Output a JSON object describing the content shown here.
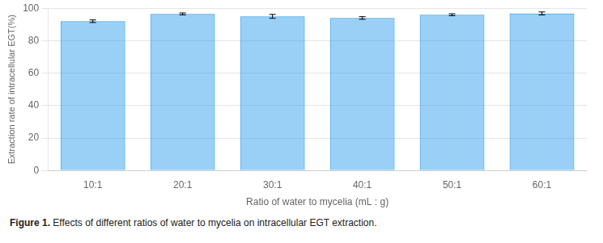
{
  "chart_data": {
    "type": "bar",
    "categories": [
      "10:1",
      "20:1",
      "30:1",
      "40:1",
      "50:1",
      "60:1"
    ],
    "values": [
      92.0,
      96.5,
      95.0,
      94.0,
      96.0,
      96.8
    ],
    "errors": [
      0.8,
      0.6,
      1.2,
      0.8,
      0.6,
      0.9
    ],
    "xlabel": "Ratio of water to mycelia (mL : g)",
    "ylabel": "Extraction rate of intracellular EGT(%)",
    "ylim": [
      0,
      100
    ],
    "yticks": [
      0,
      20,
      40,
      60,
      80,
      100
    ],
    "grid": true,
    "annotations": [
      "Figure 1.",
      "Effects of different ratios of water to mycelia on intracellular EGT extraction."
    ]
  }
}
